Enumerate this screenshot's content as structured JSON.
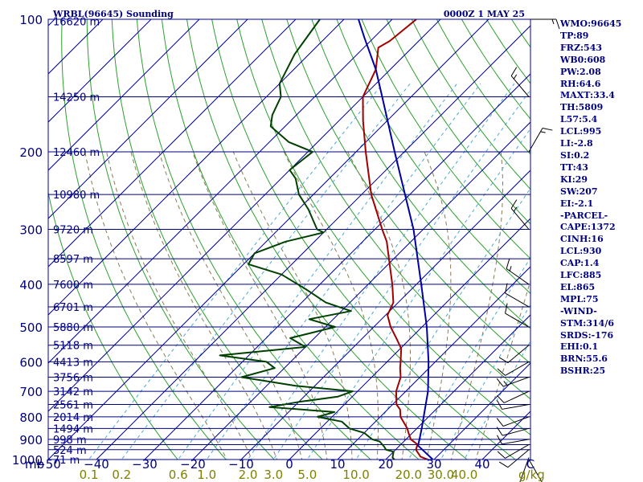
{
  "chart_data": {
    "type": "line",
    "title": "WRBL(96645) Sounding",
    "time": "0000Z  1 MAY 25",
    "pressure_axis": {
      "unit_label": "mb",
      "range": [
        1000,
        100
      ],
      "ticks": [
        "100",
        "200",
        "300",
        "400",
        "500",
        "600",
        "700",
        "800",
        "900",
        "1000"
      ],
      "scale": "log"
    },
    "temperature_axis": {
      "range": [
        -50,
        50
      ],
      "ticks": [
        "−50",
        "−40",
        "−30",
        "−20",
        "−10",
        "0",
        "10",
        "20",
        "30",
        "40",
        "C"
      ]
    },
    "mixing_ratio_axis": {
      "unit_label": "g/kg",
      "ticks": [
        "0.1",
        "0.2",
        "0.6",
        "1.0",
        "2.0",
        "3.0",
        "5.0",
        "10.0",
        "20.0",
        "30.0",
        "40.0"
      ]
    },
    "height_labels": [
      {
        "p": 101,
        "text": "16620 m"
      },
      {
        "p": 150,
        "text": "14250 m"
      },
      {
        "p": 200,
        "text": "12460 m"
      },
      {
        "p": 250,
        "text": "10980 m"
      },
      {
        "p": 300,
        "text": "9720 m"
      },
      {
        "p": 350,
        "text": "8597 m"
      },
      {
        "p": 400,
        "text": "7600 m"
      },
      {
        "p": 450,
        "text": "6701 m"
      },
      {
        "p": 500,
        "text": "5880 m"
      },
      {
        "p": 550,
        "text": "5118 m"
      },
      {
        "p": 600,
        "text": "4413 m"
      },
      {
        "p": 650,
        "text": "3756 m"
      },
      {
        "p": 700,
        "text": "3142 m"
      },
      {
        "p": 750,
        "text": "2561 m"
      },
      {
        "p": 800,
        "text": "2014 m"
      },
      {
        "p": 850,
        "text": "1494 m"
      },
      {
        "p": 900,
        "text": "998 m"
      },
      {
        "p": 950,
        "text": "524 m"
      },
      {
        "p": 1000,
        "text": "71 m"
      }
    ],
    "series": [
      {
        "role": "temperature",
        "color": "#a00000",
        "points": [
          [
            1003,
            29.0
          ],
          [
            985,
            26.6
          ],
          [
            950,
            24.2
          ],
          [
            925,
            23.5
          ],
          [
            900,
            21.0
          ],
          [
            870,
            19.2
          ],
          [
            850,
            18.0
          ],
          [
            800,
            14.2
          ],
          [
            770,
            12.6
          ],
          [
            750,
            10.8
          ],
          [
            700,
            8.0
          ],
          [
            650,
            6.0
          ],
          [
            620,
            4.0
          ],
          [
            600,
            2.8
          ],
          [
            560,
            0.2
          ],
          [
            530,
            -3.0
          ],
          [
            500,
            -6.5
          ],
          [
            470,
            -9.6
          ],
          [
            440,
            -11.0
          ],
          [
            400,
            -15.0
          ],
          [
            350,
            -21.0
          ],
          [
            320,
            -25.0
          ],
          [
            300,
            -28.5
          ],
          [
            250,
            -38.0
          ],
          [
            200,
            -48.0
          ],
          [
            170,
            -55.0
          ],
          [
            150,
            -60.0
          ],
          [
            130,
            -63.0
          ],
          [
            116,
            -67.0
          ],
          [
            112,
            -66.0
          ],
          [
            100,
            -65.0
          ]
        ]
      },
      {
        "role": "dewpoint",
        "color": "#004000",
        "points": [
          [
            1003,
            22.0
          ],
          [
            990,
            21.0
          ],
          [
            975,
            20.5
          ],
          [
            960,
            20.0
          ],
          [
            950,
            18.0
          ],
          [
            935,
            17.0
          ],
          [
            910,
            15.0
          ],
          [
            900,
            13.0
          ],
          [
            870,
            10.0
          ],
          [
            850,
            6.0
          ],
          [
            820,
            3.0
          ],
          [
            800,
            -3.0
          ],
          [
            780,
            -0.5
          ],
          [
            760,
            -15.0
          ],
          [
            740,
            -10.0
          ],
          [
            720,
            -3.0
          ],
          [
            700,
            -1.0
          ],
          [
            680,
            -14.0
          ],
          [
            650,
            -27.0
          ],
          [
            620,
            -22.0
          ],
          [
            600,
            -25.0
          ],
          [
            580,
            -36.0
          ],
          [
            555,
            -20.0
          ],
          [
            530,
            -25.0
          ],
          [
            500,
            -18.0
          ],
          [
            480,
            -25.0
          ],
          [
            460,
            -18.0
          ],
          [
            440,
            -25.0
          ],
          [
            410,
            -32.0
          ],
          [
            380,
            -40.0
          ],
          [
            360,
            -49.0
          ],
          [
            340,
            -50.0
          ],
          [
            320,
            -46.0
          ],
          [
            305,
            -40.0
          ],
          [
            300,
            -42.0
          ],
          [
            270,
            -48.0
          ],
          [
            250,
            -53.0
          ],
          [
            230,
            -57.0
          ],
          [
            220,
            -60.0
          ],
          [
            200,
            -59.0
          ],
          [
            190,
            -66.0
          ],
          [
            175,
            -73.0
          ],
          [
            165,
            -75.0
          ],
          [
            150,
            -77.0
          ],
          [
            140,
            -80.0
          ],
          [
            120,
            -83.0
          ],
          [
            100,
            -85.0
          ]
        ]
      },
      {
        "role": "parcel",
        "color": "#0000a0",
        "points": [
          [
            1003,
            30.0
          ],
          [
            930,
            23.8
          ],
          [
            900,
            22.8
          ],
          [
            850,
            21.0
          ],
          [
            800,
            19.0
          ],
          [
            700,
            14.6
          ],
          [
            600,
            8.6
          ],
          [
            500,
            1.0
          ],
          [
            400,
            -9.0
          ],
          [
            300,
            -22.0
          ],
          [
            250,
            -31.0
          ],
          [
            200,
            -42.0
          ],
          [
            150,
            -56.0
          ],
          [
            130,
            -63.0
          ],
          [
            110,
            -72.0
          ],
          [
            100,
            -77.0
          ]
        ]
      }
    ],
    "wind_barbs": [
      {
        "p": 1000,
        "dir": 150,
        "spd": 10
      },
      {
        "p": 990,
        "dir": 200,
        "spd": 10
      },
      {
        "p": 950,
        "dir": 230,
        "spd": 10
      },
      {
        "p": 925,
        "dir": 240,
        "spd": 10
      },
      {
        "p": 900,
        "dir": 260,
        "spd": 10
      },
      {
        "p": 850,
        "dir": 255,
        "spd": 10
      },
      {
        "p": 800,
        "dir": 250,
        "spd": 10
      },
      {
        "p": 750,
        "dir": 260,
        "spd": 10
      },
      {
        "p": 700,
        "dir": 245,
        "spd": 10
      },
      {
        "p": 650,
        "dir": 250,
        "spd": 15
      },
      {
        "p": 600,
        "dir": 240,
        "spd": 10
      },
      {
        "p": 550,
        "dir": 230,
        "spd": 10
      },
      {
        "p": 500,
        "dir": 300,
        "spd": 10
      },
      {
        "p": 450,
        "dir": 300,
        "spd": 10
      },
      {
        "p": 400,
        "dir": 305,
        "spd": 15
      },
      {
        "p": 300,
        "dir": 320,
        "spd": 15
      },
      {
        "p": 200,
        "dir": 30,
        "spd": 15
      },
      {
        "p": 150,
        "dir": 320,
        "spd": 15
      },
      {
        "p": 100,
        "dir": 90,
        "spd": 15
      }
    ],
    "colors": {
      "axes": "#0000a0",
      "isobars": "#000080",
      "isotherms": "#00008b",
      "dry_adiabats": "#2ca02c",
      "mixing_ratio": "#4aa8d6",
      "moist_adiabats": "#8b7a55",
      "mixing_labels": "#808000",
      "text": "#000080"
    }
  },
  "indices": [
    "WMO:96645",
    "TP:89",
    "FRZ:543",
    "WB0:608",
    "PW:2.08",
    "RH:64.6",
    "MAXT:33.4",
    "TH:5809",
    "L57:5.4",
    "LCL:995",
    "LI:-2.8",
    "SI:0.2",
    "TT:43",
    "KI:29",
    "SW:207",
    "EI:-2.1",
    "-PARCEL-",
    "CAPE:1372",
    "CINH:16",
    "LCL:930",
    "CAP:1.4",
    "LFC:885",
    "EL:865",
    "MPL:75",
    "-WIND-",
    "STM:314/6",
    "SRDS:-176",
    "EHI:0.1",
    "BRN:55.6",
    "BSHR:25"
  ]
}
